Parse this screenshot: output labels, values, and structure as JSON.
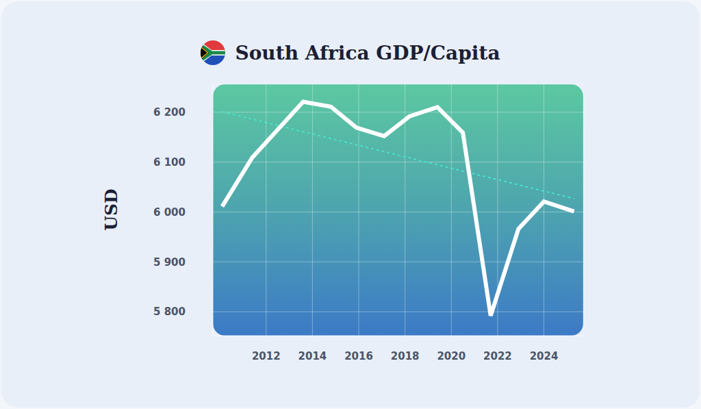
{
  "chart_data": {
    "type": "line",
    "title": "South Africa GDP/Capita",
    "y_label": "USD",
    "x": [
      2010.1,
      2011.4,
      2012.5,
      2013.6,
      2014.8,
      2015.9,
      2017.1,
      2018.2,
      2019.4,
      2020.5,
      2021.7,
      2022.9,
      2024.0,
      2025.3
    ],
    "series": [
      {
        "color": "#ffffff",
        "line_style": "solid",
        "values": [
          6011,
          6109,
          6165,
          6221,
          6211,
          6169,
          6152,
          6192,
          6210,
          6159,
          5792,
          5966,
          6021,
          6001
        ]
      },
      {
        "color": "#45f0d6",
        "line_style": "dashed",
        "values": [
          6201,
          null,
          null,
          null,
          null,
          null,
          null,
          null,
          null,
          null,
          null,
          null,
          null,
          6027
        ]
      }
    ],
    "xlim": [
      2009.7,
      2025.7
    ],
    "xticks": [
      2012,
      2014,
      2016,
      2018,
      2020,
      2022,
      2024
    ],
    "ylim": [
      5752,
      6256
    ],
    "yticks": [
      {
        "value": 5800,
        "label": "5 800"
      },
      {
        "value": 5900,
        "label": "5 900"
      },
      {
        "value": 6000,
        "label": "6 000"
      },
      {
        "value": 6100,
        "label": "6 100"
      },
      {
        "value": 6200,
        "label": "6 200"
      }
    ],
    "grid": true
  }
}
